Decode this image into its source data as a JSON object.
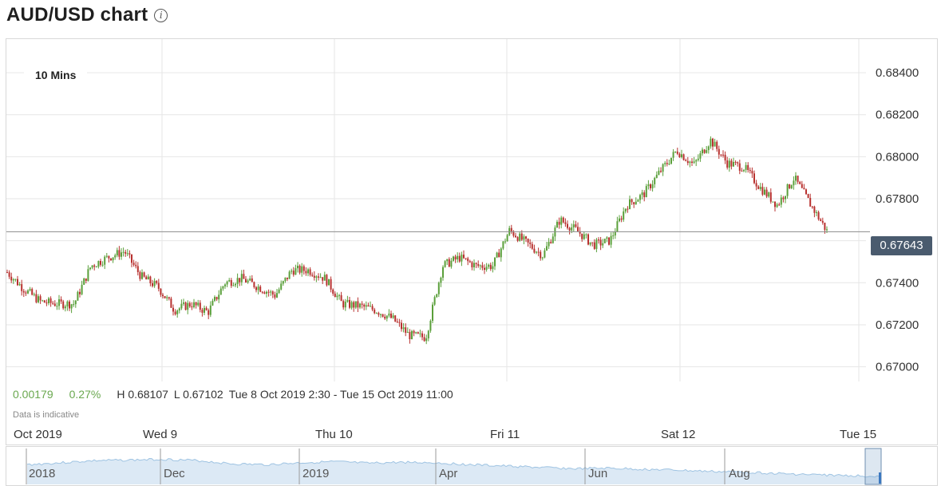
{
  "header": {
    "title": "AUD/USD chart",
    "info_icon": "info-icon",
    "info_glyph": "i"
  },
  "interval_label": "10 Mins",
  "stats": {
    "change": "0.00179",
    "change_pct": "0.27%",
    "high": "H 0.68107",
    "low": "L 0.67102",
    "range": "Tue 8 Oct 2019 2:30 - Tue 15 Oct 2019 11:00",
    "disclaimer": "Data is indicative"
  },
  "current_price": "0.67643",
  "x_labels": [
    "Oct 2019",
    "Wed 9",
    "Thu 10",
    "Fri 11",
    "Sat 12",
    "Tue 15"
  ],
  "navigator": {
    "labels": [
      "2018",
      "Dec",
      "2019",
      "Apr",
      "Jun",
      "Aug"
    ]
  },
  "colors": {
    "up": "#5a9f3a",
    "down": "#b8312f",
    "grid": "#e6e6e6",
    "current_line": "#8c8c8c",
    "price_tag": "#4a5b6e",
    "navigator_fill": "#dce9f5",
    "navigator_line": "#9ec3e2"
  },
  "chart_data": {
    "type": "line",
    "title": "AUD/USD chart",
    "interval": "10 Mins",
    "xlabel": "",
    "ylabel": "",
    "y_ticks": [
      0.67,
      0.672,
      0.674,
      0.676,
      0.678,
      0.68,
      0.682,
      0.684
    ],
    "y_tick_labels": [
      "0.67000",
      "0.67200",
      "0.67400",
      "0.67600",
      "0.67800",
      "0.68000",
      "0.68200",
      "0.68400"
    ],
    "ylim": [
      0.6693,
      0.6856
    ],
    "x_tick_labels": [
      "Oct 2019",
      "Wed 9",
      "Thu 10",
      "Fri 11",
      "Sat 12",
      "Tue 15"
    ],
    "current": 0.67643,
    "high": 0.68107,
    "low": 0.67102,
    "grid": true,
    "series": [
      {
        "x": [
          "Tue 8 02:30",
          "Tue 8 06:00",
          "Tue 8 10:00",
          "Tue 8 13:00",
          "Tue 8 16:00",
          "Tue 8 20:00",
          "Wed 9 00:00",
          "Wed 9 02:00",
          "Wed 9 04:00",
          "Wed 9 06:00",
          "Wed 9 08:00",
          "Wed 9 10:00",
          "Wed 9 14:00",
          "Wed 9 16:00",
          "Wed 9 18:00",
          "Wed 9 20:00",
          "Wed 9 22:00",
          "Thu 10 00:00",
          "Thu 10 02:00",
          "Thu 10 04:00",
          "Thu 10 06:00",
          "Thu 10 08:00",
          "Thu 10 10:00",
          "Thu 10 12:00",
          "Thu 10 14:00",
          "Thu 10 16:00",
          "Thu 10 18:00",
          "Thu 10 19:00",
          "Thu 10 20:00",
          "Thu 10 22:00",
          "Fri 11 00:00",
          "Fri 11 02:00",
          "Fri 11 04:00",
          "Fri 11 06:00",
          "Fri 11 08:00",
          "Fri 11 10:00",
          "Fri 11 12:00",
          "Fri 11 16:00",
          "Fri 11 20:00",
          "Sat 12 00:00",
          "Sat 12 04:00",
          "Sat 12 06:00",
          "Sat 12 08:00",
          "Sat 12 10:00",
          "Sat 12 14:00",
          "Sat 12 18:00",
          "Sat 12 20:00",
          "Sat 12 22:00",
          "Tue 15 00:00",
          "Tue 15 02:00"
        ],
        "values": [
          0.6745,
          0.6737,
          0.6731,
          0.673,
          0.673,
          0.6748,
          0.6752,
          0.6755,
          0.6743,
          0.6738,
          0.6727,
          0.673,
          0.6726,
          0.674,
          0.6742,
          0.6738,
          0.6734,
          0.6746,
          0.6746,
          0.6742,
          0.673,
          0.6729,
          0.6727,
          0.6723,
          0.6715,
          0.6714,
          0.6748,
          0.6752,
          0.6748,
          0.6748,
          0.6765,
          0.6759,
          0.6753,
          0.677,
          0.6765,
          0.6758,
          0.676,
          0.6777,
          0.6782,
          0.6793,
          0.6803,
          0.6796,
          0.6808,
          0.6797,
          0.6795,
          0.6785,
          0.6777,
          0.679,
          0.6777,
          0.6764
        ]
      }
    ]
  }
}
